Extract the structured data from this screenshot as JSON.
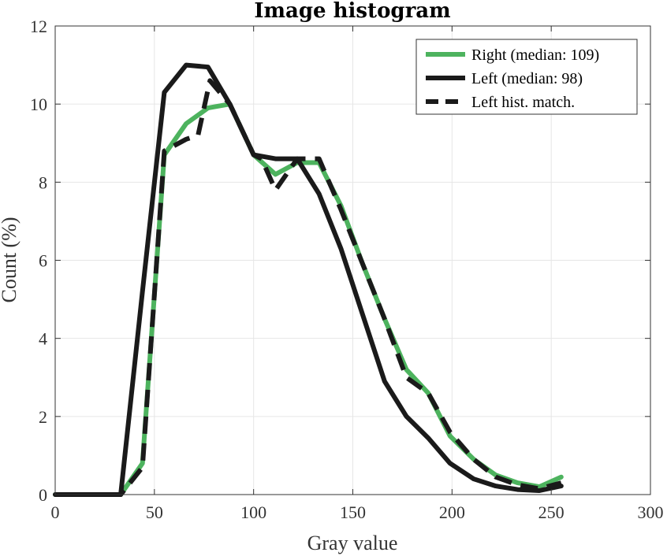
{
  "chart_data": {
    "type": "line",
    "title": "Image histogram",
    "xlabel": "Gray value",
    "ylabel": "Count (%)",
    "xlim": [
      0,
      300
    ],
    "ylim": [
      0,
      12
    ],
    "xticks": [
      0,
      50,
      100,
      150,
      200,
      250,
      300
    ],
    "yticks": [
      0,
      2,
      4,
      6,
      8,
      10,
      12
    ],
    "grid": true,
    "legend_position": "top-right",
    "series": [
      {
        "name": "Right (median: 109)",
        "color": "#4db35e",
        "style": "solid",
        "x": [
          0,
          11,
          22,
          33,
          44,
          55,
          66,
          77,
          88,
          100,
          111,
          122,
          133,
          144,
          155,
          166,
          177,
          188,
          199,
          211,
          222,
          233,
          244,
          255
        ],
        "y": [
          0,
          0,
          0,
          0,
          0.8,
          8.7,
          9.5,
          9.9,
          10.0,
          8.7,
          8.2,
          8.5,
          8.5,
          7.4,
          5.9,
          4.5,
          3.2,
          2.6,
          1.5,
          0.9,
          0.5,
          0.3,
          0.2,
          0.45
        ]
      },
      {
        "name": "Left (median: 98)",
        "color": "#1a1a1a",
        "style": "solid",
        "x": [
          0,
          11,
          22,
          33,
          44,
          55,
          66,
          77,
          88,
          100,
          111,
          122,
          133,
          144,
          155,
          166,
          177,
          188,
          199,
          211,
          222,
          233,
          244,
          255
        ],
        "y": [
          0,
          0,
          0,
          0,
          5.2,
          10.3,
          11.0,
          10.95,
          10.0,
          8.7,
          8.6,
          8.6,
          7.7,
          6.3,
          4.6,
          2.9,
          2.0,
          1.45,
          0.8,
          0.4,
          0.22,
          0.13,
          0.1,
          0.22
        ]
      },
      {
        "name": "Left hist. match.",
        "color": "#1a1a1a",
        "style": "dashed",
        "x": [
          0,
          11,
          22,
          33,
          44,
          55,
          66,
          72,
          78,
          88,
          100,
          104,
          111,
          122,
          133,
          144,
          155,
          166,
          177,
          188,
          199,
          211,
          222,
          233,
          244,
          255
        ],
        "y": [
          0,
          0,
          0,
          0,
          0.7,
          8.8,
          9.1,
          9.2,
          10.6,
          10.0,
          8.7,
          8.6,
          7.8,
          8.6,
          8.6,
          7.3,
          5.9,
          4.5,
          3.0,
          2.6,
          1.6,
          0.9,
          0.45,
          0.25,
          0.15,
          0.3
        ]
      }
    ]
  }
}
